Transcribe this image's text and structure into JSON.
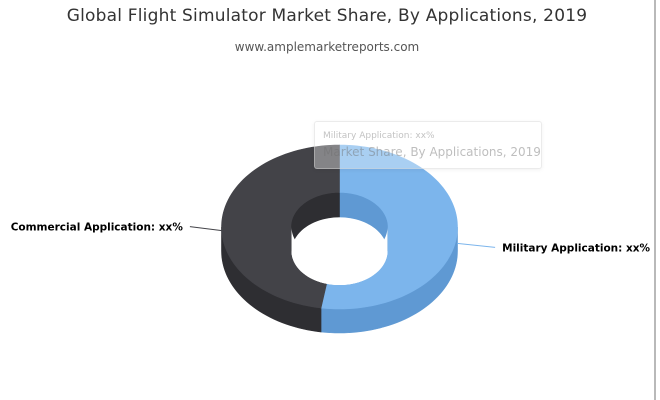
{
  "header": {
    "title": "Global Flight Simulator Market Share, By Applications, 2019",
    "source": "www.amplemarketreports.com"
  },
  "tooltip": {
    "point_label": "Military Application: xx%",
    "series_name": "Market Share, By Applications, 2019"
  },
  "chart_data": {
    "type": "pie",
    "variant": "3d-donut",
    "title": "Global Flight Simulator Market Share, By Applications, 2019",
    "subtitle": "www.amplemarketreports.com",
    "series_name": "Market Share, By Applications, 2019",
    "slices": [
      {
        "name": "Military Application",
        "label": "Military Application: xx%",
        "share": 0.525,
        "color": "#7cb5ec",
        "side_color": "#5f99d3"
      },
      {
        "name": "Commercial Application",
        "label": "Commercial Application: xx%",
        "share": 0.475,
        "color": "#434348",
        "side_color": "#2e2e32"
      }
    ],
    "legend": "none"
  }
}
